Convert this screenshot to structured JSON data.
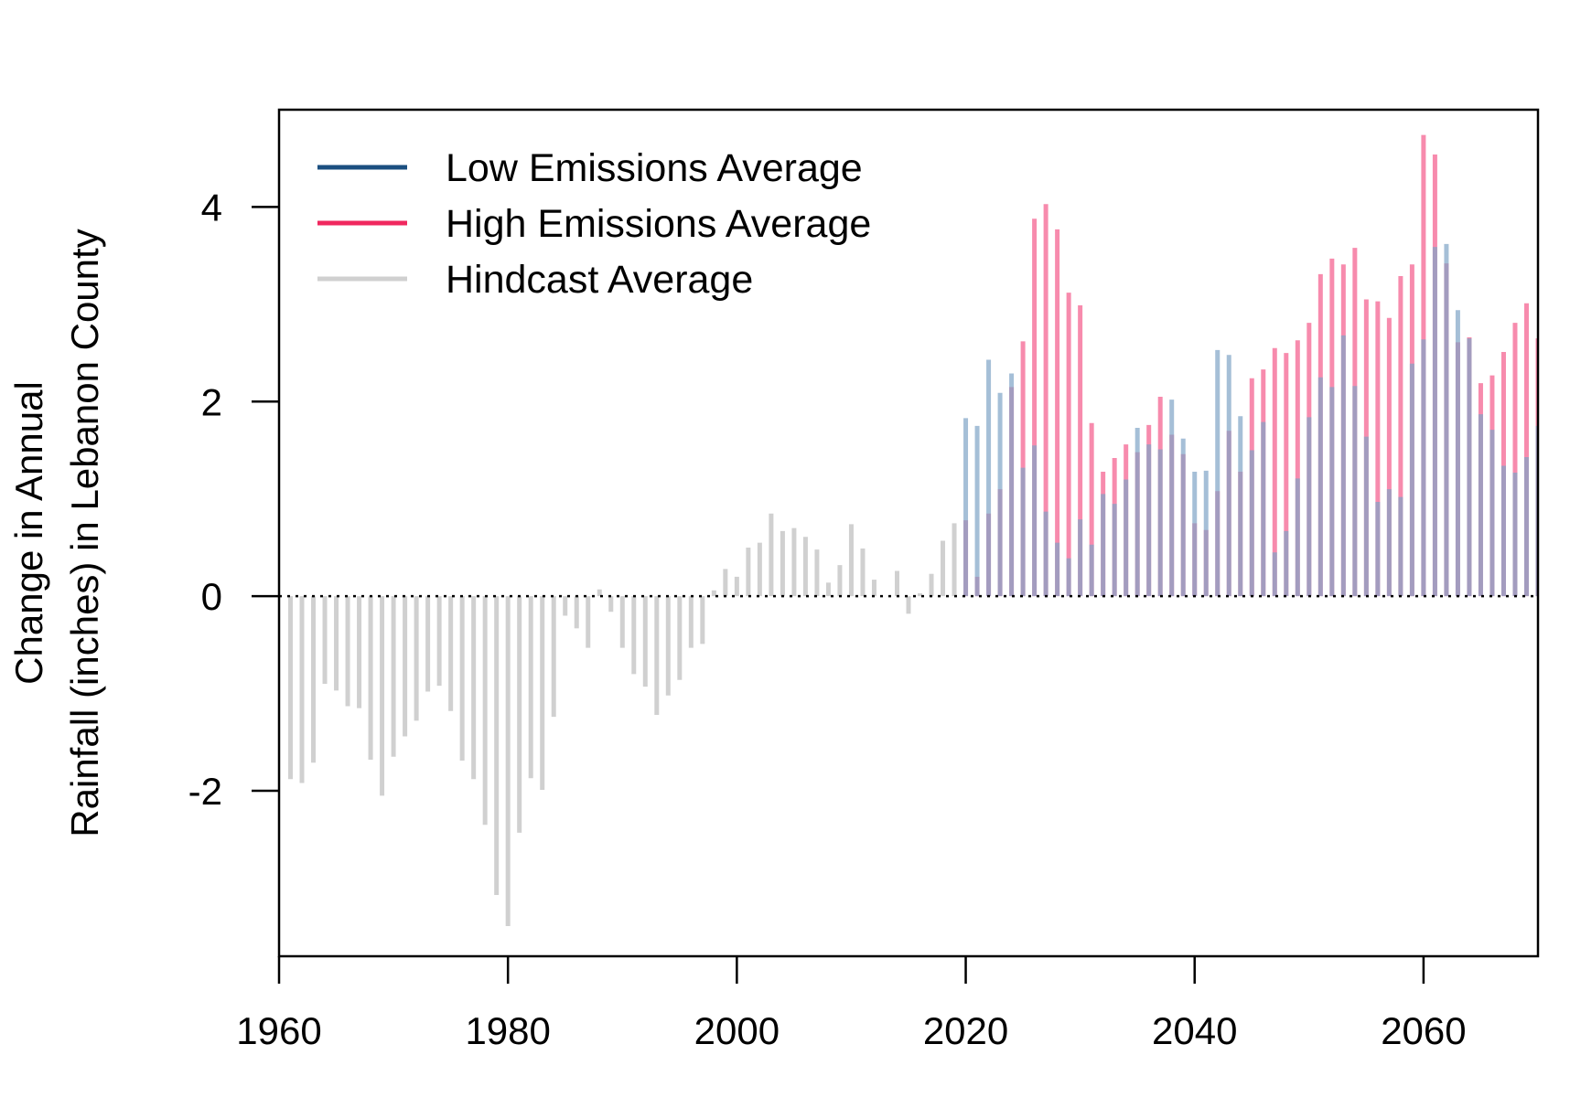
{
  "chart_data": {
    "type": "bar",
    "title": "",
    "xlabel": "",
    "ylabel_lines": [
      "Change in Annual",
      "Rainfall (inches) in Lebanon County"
    ],
    "xlim": [
      1960,
      2070
    ],
    "ylim": [
      -3.7,
      5.0
    ],
    "x_ticks": [
      1960,
      1980,
      2000,
      2020,
      2040,
      2060
    ],
    "x_tick_labels": [
      "1960",
      "1980",
      "2000",
      "2020",
      "2040",
      "2060"
    ],
    "y_ticks": [
      -2,
      0,
      2,
      4
    ],
    "y_tick_labels": [
      "-2",
      "0",
      "2",
      "4"
    ],
    "reference_line": 0,
    "grid": false,
    "legend_position": "top-left",
    "legend": [
      {
        "label": "Low Emissions Average",
        "color": "#1b4f80"
      },
      {
        "label": "High Emissions Average",
        "color": "#f0285f"
      },
      {
        "label": "Hindcast Average",
        "color": "#d0d0d0"
      }
    ],
    "series": [
      {
        "name": "Hindcast Average",
        "color": "#d0d0d0",
        "x": [
          1961,
          1962,
          1963,
          1964,
          1965,
          1966,
          1967,
          1968,
          1969,
          1970,
          1971,
          1972,
          1973,
          1974,
          1975,
          1976,
          1977,
          1978,
          1979,
          1980,
          1981,
          1982,
          1983,
          1984,
          1985,
          1986,
          1987,
          1988,
          1989,
          1990,
          1991,
          1992,
          1993,
          1994,
          1995,
          1996,
          1997,
          1998,
          1999,
          2000,
          2001,
          2002,
          2003,
          2004,
          2005,
          2006,
          2007,
          2008,
          2009,
          2010,
          2011,
          2012,
          2013,
          2014,
          2015,
          2016,
          2017,
          2018,
          2019
        ],
        "values": [
          -1.88,
          -1.92,
          -1.71,
          -0.9,
          -0.97,
          -1.13,
          -1.15,
          -1.68,
          -2.05,
          -1.65,
          -1.44,
          -1.28,
          -0.98,
          -0.92,
          -1.18,
          -1.69,
          -1.88,
          -2.35,
          -3.07,
          -3.39,
          -2.43,
          -1.87,
          -1.99,
          -1.24,
          -0.2,
          -0.33,
          -0.53,
          0.07,
          -0.16,
          -0.53,
          -0.8,
          -0.93,
          -1.22,
          -1.02,
          -0.86,
          -0.53,
          -0.49,
          0.06,
          0.28,
          0.2,
          0.5,
          0.55,
          0.85,
          0.67,
          0.7,
          0.61,
          0.48,
          0.14,
          0.32,
          0.74,
          0.49,
          0.17,
          0.0,
          0.26,
          -0.18,
          0.03,
          0.23,
          0.57,
          0.75
        ]
      },
      {
        "name": "High Emissions Average",
        "color": "#f45a8a",
        "x": [
          2020,
          2021,
          2022,
          2023,
          2024,
          2025,
          2026,
          2027,
          2028,
          2029,
          2030,
          2031,
          2032,
          2033,
          2034,
          2035,
          2036,
          2037,
          2038,
          2039,
          2040,
          2041,
          2042,
          2043,
          2044,
          2045,
          2046,
          2047,
          2048,
          2049,
          2050,
          2051,
          2052,
          2053,
          2054,
          2055,
          2056,
          2057,
          2058,
          2059,
          2060,
          2061,
          2062,
          2063,
          2064,
          2065,
          2066,
          2067,
          2068,
          2069,
          2070
        ],
        "values": [
          0.78,
          0.2,
          0.85,
          1.1,
          2.15,
          2.62,
          3.88,
          4.03,
          3.77,
          3.12,
          2.99,
          1.78,
          1.28,
          1.42,
          1.56,
          1.48,
          1.76,
          2.05,
          1.66,
          1.46,
          0.75,
          0.68,
          1.08,
          1.7,
          1.28,
          2.24,
          2.33,
          2.55,
          2.5,
          2.63,
          2.81,
          3.31,
          3.47,
          3.41,
          3.58,
          3.05,
          3.03,
          2.86,
          3.29,
          3.41,
          4.74,
          4.54,
          3.42,
          2.61,
          2.66,
          2.19,
          2.27,
          2.51,
          2.81,
          3.01,
          2.65
        ]
      },
      {
        "name": "Low Emissions Average",
        "color": "#7fa4c6",
        "x": [
          2020,
          2021,
          2022,
          2023,
          2024,
          2025,
          2026,
          2027,
          2028,
          2029,
          2030,
          2031,
          2032,
          2033,
          2034,
          2035,
          2036,
          2037,
          2038,
          2039,
          2040,
          2041,
          2042,
          2043,
          2044,
          2045,
          2046,
          2047,
          2048,
          2049,
          2050,
          2051,
          2052,
          2053,
          2054,
          2055,
          2056,
          2057,
          2058,
          2059,
          2060,
          2061,
          2062,
          2063,
          2064,
          2065,
          2066,
          2067,
          2068,
          2069,
          2070
        ],
        "values": [
          1.83,
          1.75,
          2.43,
          2.09,
          2.29,
          1.32,
          1.55,
          0.87,
          0.55,
          0.39,
          0.79,
          0.53,
          1.05,
          0.95,
          1.2,
          1.73,
          1.56,
          1.51,
          2.02,
          1.62,
          1.28,
          1.29,
          2.53,
          2.48,
          1.85,
          1.5,
          1.79,
          0.45,
          0.67,
          1.21,
          1.84,
          2.25,
          2.15,
          2.68,
          2.16,
          1.64,
          0.97,
          1.1,
          1.02,
          2.39,
          2.64,
          3.59,
          3.62,
          2.94,
          2.65,
          1.87,
          1.71,
          1.34,
          1.27,
          1.43,
          1.75
        ]
      }
    ]
  }
}
